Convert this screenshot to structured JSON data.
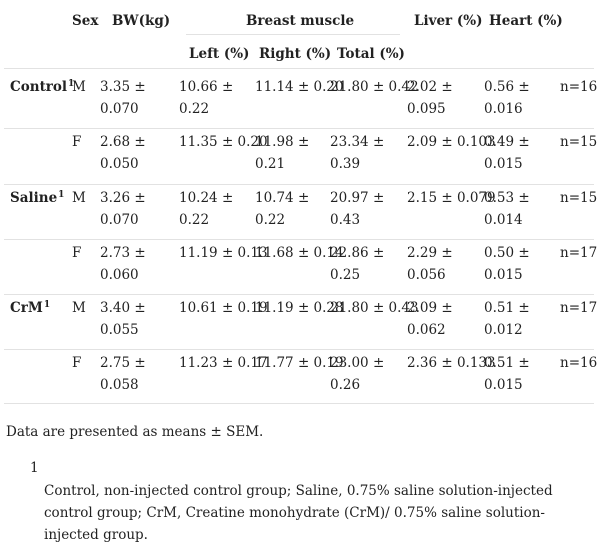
{
  "header": {
    "sex": "Sex",
    "bw": "BW(kg)",
    "breast_muscle": "Breast muscle",
    "liver": "Liver (%)",
    "heart": "Heart (%)",
    "left": "Left (%)",
    "right": "Right (%)",
    "total": "Total (%)"
  },
  "groups": [
    {
      "name": "Control",
      "sup": "1"
    },
    {
      "name": "Saline",
      "sup": "1"
    },
    {
      "name": "CrM",
      "sup": "1"
    }
  ],
  "rows": [
    {
      "sex": "M",
      "bw": [
        "3.35 ±",
        "0.070"
      ],
      "left": [
        "10.66 ±",
        "0.22"
      ],
      "right": [
        "11.14 ± 0.20"
      ],
      "total": [
        "21.80 ± 0.42"
      ],
      "liver": [
        "2.02 ±",
        "0.095"
      ],
      "heart": [
        "0.56 ±",
        "0.016"
      ],
      "n": "n=16"
    },
    {
      "sex": "F",
      "bw": [
        "2.68 ±",
        "0.050"
      ],
      "left": [
        "11.35 ± 0.20"
      ],
      "right": [
        "11.98 ±",
        "0.21"
      ],
      "total": [
        "23.34 ±",
        "0.39"
      ],
      "liver": [
        "2.09 ± 0.103"
      ],
      "heart": [
        "0.49 ±",
        "0.015"
      ],
      "n": "n=15"
    },
    {
      "sex": "M",
      "bw": [
        "3.26 ±",
        "0.070"
      ],
      "left": [
        "10.24 ±",
        "0.22"
      ],
      "right": [
        "10.74 ±",
        "0.22"
      ],
      "total": [
        "20.97 ±",
        "0.43"
      ],
      "liver": [
        "2.15 ± 0.079"
      ],
      "heart": [
        "0.53 ±",
        "0.014"
      ],
      "n": "n=15"
    },
    {
      "sex": "F",
      "bw": [
        "2.73 ±",
        "0.060"
      ],
      "left": [
        "11.19 ± 0.13"
      ],
      "right": [
        "11.68 ± 0.14"
      ],
      "total": [
        "22.86 ±",
        "0.25"
      ],
      "liver": [
        "2.29 ±",
        "0.056"
      ],
      "heart": [
        "0.50 ±",
        "0.015"
      ],
      "n": "n=17"
    },
    {
      "sex": "M",
      "bw": [
        "3.40 ±",
        "0.055"
      ],
      "left": [
        "10.61 ± 0.19"
      ],
      "right": [
        "11.19 ± 0.28"
      ],
      "total": [
        "21.80 ± 0.43"
      ],
      "liver": [
        "2.09 ±",
        "0.062"
      ],
      "heart": [
        "0.51 ±",
        "0.012"
      ],
      "n": "n=17"
    },
    {
      "sex": "F",
      "bw": [
        "2.75 ±",
        "0.058"
      ],
      "left": [
        "11.23 ± 0.17"
      ],
      "right": [
        "11.77 ± 0.19"
      ],
      "total": [
        "23.00 ±",
        "0.26"
      ],
      "liver": [
        "2.36 ± 0.133"
      ],
      "heart": [
        "0.51 ±",
        "0.015"
      ],
      "n": "n=16"
    }
  ],
  "note": "Data are presented as means ± SEM.",
  "footnote": {
    "marker": "1",
    "text": "Control, non-injected control group; Saline, 0.75% saline solution-injected control group; CrM, Creatine monohydrate (CrM)/ 0.75% saline solution-injected group."
  }
}
